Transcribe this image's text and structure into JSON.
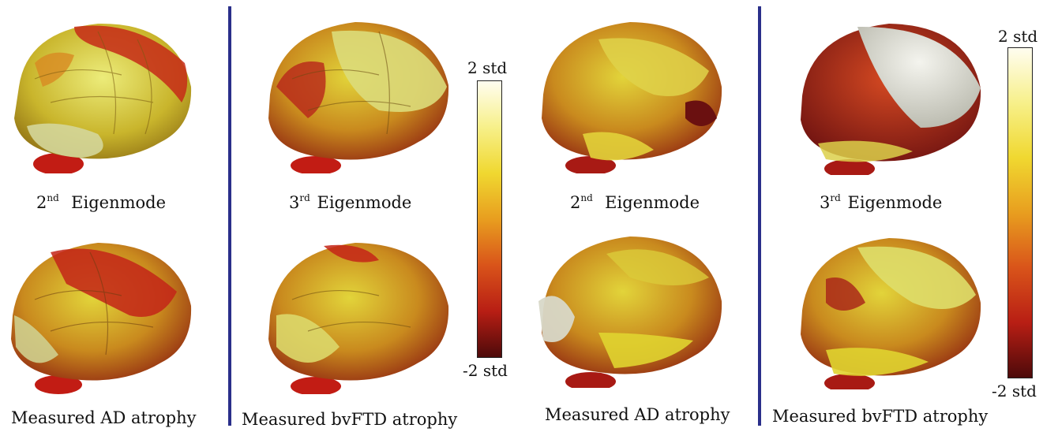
{
  "panels": [
    {
      "caption": "Eigenmode",
      "ordinal": "2",
      "sup": "nd"
    },
    {
      "caption": "Measured AD atrophy"
    },
    {
      "caption": "Eigenmode",
      "ordinal": "3",
      "sup": "rd"
    },
    {
      "caption": "Measured bvFTD atrophy"
    },
    {
      "caption": "Eigenmode",
      "ordinal": "2",
      "sup": "nd"
    },
    {
      "caption": "Measured AD atrophy"
    },
    {
      "caption": "Eigenmode",
      "ordinal": "3",
      "sup": "rd"
    },
    {
      "caption": "Measured bvFTD atrophy"
    }
  ],
  "colorbars": [
    {
      "top_label": "2 std",
      "bottom_label": "-2 std",
      "colors": [
        "#fffdf0",
        "#f7f08a",
        "#f0d830",
        "#e89e1f",
        "#d9541a",
        "#b81e14",
        "#4d0a0a"
      ]
    },
    {
      "top_label": "2 std",
      "bottom_label": "-2 std",
      "colors": [
        "#fffdf0",
        "#f7f08a",
        "#f0d830",
        "#e89e1f",
        "#d9541a",
        "#b81e14",
        "#4d0a0a"
      ]
    }
  ],
  "colors": {
    "divider": "#2a2f8a"
  }
}
